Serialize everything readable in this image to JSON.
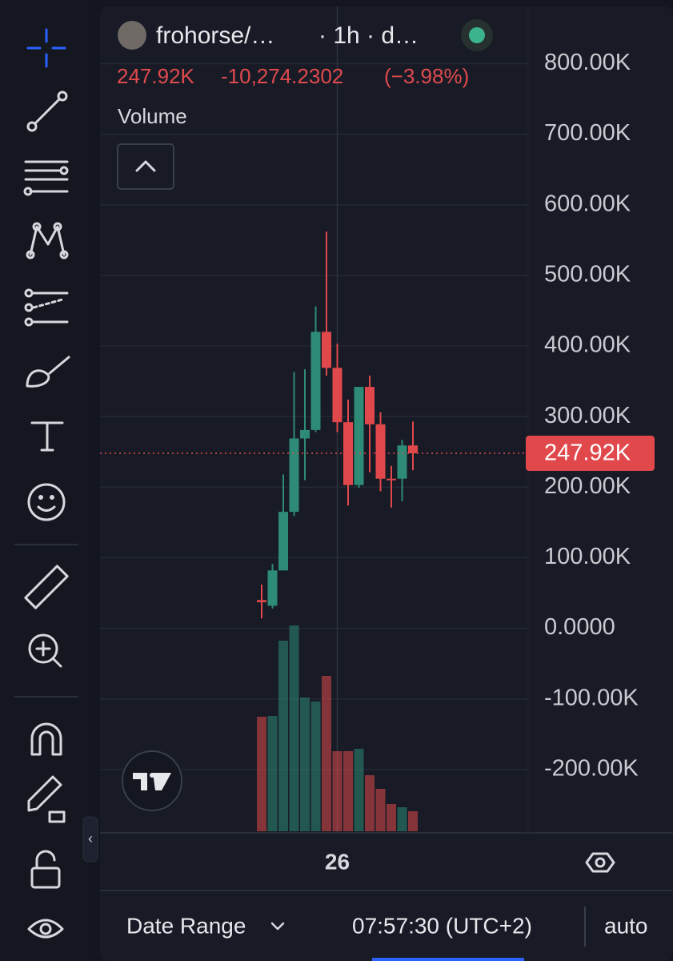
{
  "header": {
    "symbol": "frohorse/…",
    "interval": "· 1h · d…",
    "change": "-10,274.2302",
    "change_pct": "(−3.98%)"
  },
  "chart_data": {
    "type": "candlestick",
    "categories": [
      null,
      null,
      null,
      null,
      null,
      null,
      null,
      "26",
      null,
      null,
      null,
      null,
      null,
      null,
      null
    ],
    "open": [
      40000,
      32000,
      82000,
      165000,
      269000,
      281000,
      420000,
      369000,
      292000,
      203000,
      342000,
      289000,
      212000,
      212000,
      259000
    ],
    "high": [
      62000,
      91000,
      218000,
      363000,
      367000,
      456000,
      562000,
      403000,
      324000,
      342000,
      358000,
      306000,
      230000,
      267000,
      293000
    ],
    "low": [
      14000,
      28000,
      82000,
      159000,
      210000,
      278000,
      358000,
      278000,
      174000,
      199000,
      221000,
      194000,
      171000,
      180000,
      224000
    ],
    "close": [
      37000,
      82000,
      165000,
      269000,
      281000,
      420000,
      369000,
      292000,
      203000,
      342000,
      289000,
      212000,
      210000,
      259000,
      247920
    ],
    "up_color": "#2e8b75",
    "down_color": "#e0484c",
    "volume": {
      "name": "Volume",
      "values": [
        143,
        144,
        238,
        257,
        167,
        162,
        194,
        100,
        100,
        103,
        70,
        53,
        34,
        30,
        25
      ]
    },
    "last_price": {
      "value": 247920,
      "label": "247.92K"
    },
    "ylim": [
      -283000,
      830000
    ],
    "yticks": [
      {
        "value": 800000,
        "label": "800.00K"
      },
      {
        "value": 700000,
        "label": "700.00K"
      },
      {
        "value": 600000,
        "label": "600.00K"
      },
      {
        "value": 500000,
        "label": "500.00K"
      },
      {
        "value": 400000,
        "label": "400.00K"
      },
      {
        "value": 300000,
        "label": "300.00K"
      },
      {
        "value": 200000,
        "label": "200.00K"
      },
      {
        "value": 100000,
        "label": "100.00K"
      },
      {
        "value": 0,
        "label": "0.0000"
      },
      {
        "value": -100000,
        "label": "-100.00K"
      },
      {
        "value": -200000,
        "label": "-200.00K"
      }
    ],
    "grid": true
  },
  "footer": {
    "date_range": "Date Range",
    "time": "07:57:30 (UTC+2)",
    "scale_mode": "auto"
  }
}
